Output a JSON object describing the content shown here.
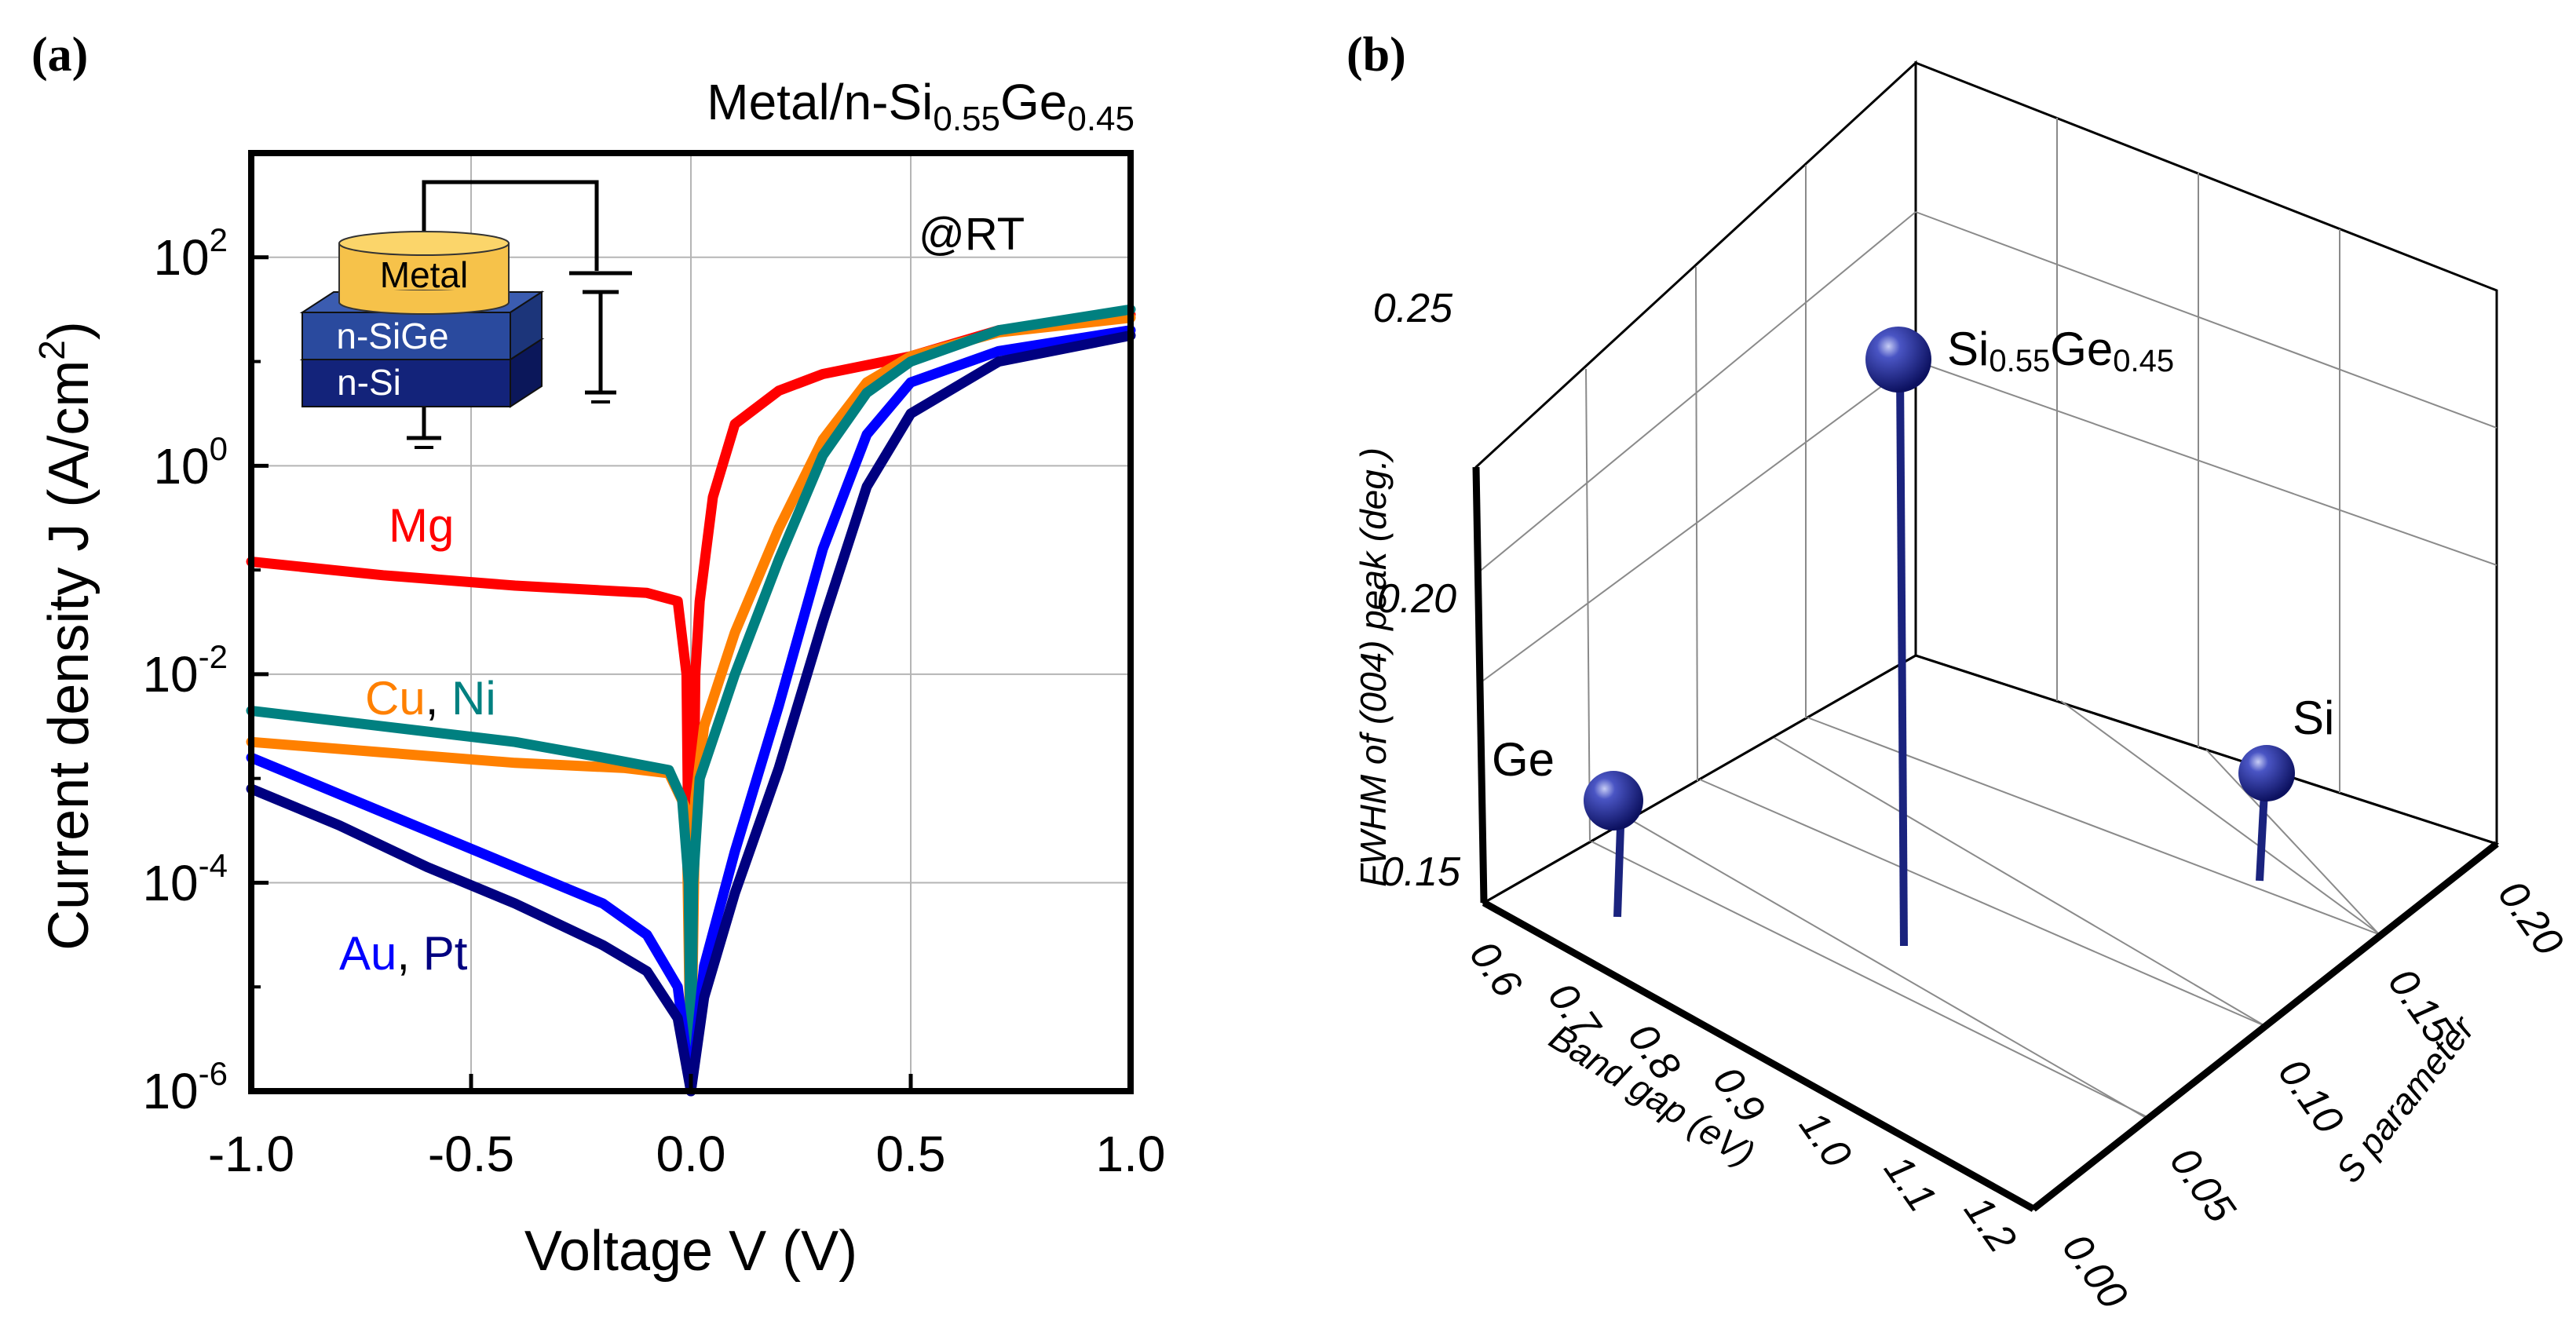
{
  "chart_data": [
    {
      "panel": "(a)",
      "type": "line",
      "title": "Metal/n-Si0.55Ge0.45",
      "title_parts": [
        "Metal/n-Si",
        "0.55",
        "Ge",
        "0.45"
      ],
      "annotation": "@RT",
      "xlabel": "Voltage V (V)",
      "ylabel": "Current density J (A/cm2)",
      "ylabel_parts": [
        "Current density J (A/cm",
        "2",
        ")"
      ],
      "xlim": [
        -1.0,
        1.0
      ],
      "ylim_log10": [
        -6,
        3
      ],
      "y_scale": "log",
      "xticks": [
        -1.0,
        -0.5,
        0.0,
        0.5,
        1.0
      ],
      "xtick_labels": [
        "-1.0",
        "-0.5",
        "0.0",
        "0.5",
        "1.0"
      ],
      "yticks_log10": [
        -6,
        -4,
        -2,
        0,
        2
      ],
      "ytick_bases": [
        "10",
        "10",
        "10",
        "10",
        "10"
      ],
      "ytick_exps": [
        "-6",
        "-4",
        "-2",
        "0",
        "2"
      ],
      "grid": true,
      "legend_labels": {
        "mg": "Mg",
        "cu": "Cu",
        "comma1": ", ",
        "ni": "Ni",
        "au": "Au",
        "comma2": ", ",
        "pt": "Pt"
      },
      "inset": {
        "metal": "Metal",
        "sige": "n-SiGe",
        "si": "n-Si"
      },
      "series": [
        {
          "name": "Mg",
          "color": "#ff0000",
          "points": [
            [
              -1.0,
              -0.92
            ],
            [
              -0.7,
              -1.05
            ],
            [
              -0.4,
              -1.15
            ],
            [
              -0.1,
              -1.22
            ],
            [
              -0.03,
              -1.3
            ],
            [
              -0.01,
              -2.0
            ],
            [
              0.0,
              -6.0
            ],
            [
              0.01,
              -2.0
            ],
            [
              0.02,
              -1.3
            ],
            [
              0.05,
              -0.3
            ],
            [
              0.1,
              0.4
            ],
            [
              0.2,
              0.72
            ],
            [
              0.3,
              0.88
            ],
            [
              0.5,
              1.05
            ],
            [
              0.7,
              1.3
            ],
            [
              1.0,
              1.45
            ]
          ]
        },
        {
          "name": "Cu",
          "color": "#ff8000",
          "points": [
            [
              -1.0,
              -2.65
            ],
            [
              -0.7,
              -2.75
            ],
            [
              -0.4,
              -2.85
            ],
            [
              -0.15,
              -2.9
            ],
            [
              -0.05,
              -2.95
            ],
            [
              -0.01,
              -3.3
            ],
            [
              0.0,
              -6.0
            ],
            [
              0.01,
              -3.2
            ],
            [
              0.03,
              -2.5
            ],
            [
              0.1,
              -1.6
            ],
            [
              0.2,
              -0.6
            ],
            [
              0.3,
              0.25
            ],
            [
              0.4,
              0.8
            ],
            [
              0.5,
              1.05
            ],
            [
              0.7,
              1.28
            ],
            [
              1.0,
              1.42
            ]
          ]
        },
        {
          "name": "Ni",
          "color": "#008080",
          "points": [
            [
              -1.0,
              -2.35
            ],
            [
              -0.7,
              -2.5
            ],
            [
              -0.4,
              -2.65
            ],
            [
              -0.2,
              -2.8
            ],
            [
              -0.05,
              -2.92
            ],
            [
              -0.02,
              -3.2
            ],
            [
              -0.005,
              -4.0
            ],
            [
              0.0,
              -6.0
            ],
            [
              0.005,
              -4.0
            ],
            [
              0.02,
              -3.0
            ],
            [
              0.1,
              -2.0
            ],
            [
              0.2,
              -0.9
            ],
            [
              0.3,
              0.1
            ],
            [
              0.4,
              0.7
            ],
            [
              0.5,
              1.0
            ],
            [
              0.7,
              1.3
            ],
            [
              1.0,
              1.5
            ]
          ]
        },
        {
          "name": "Au",
          "color": "#0000ff",
          "points": [
            [
              -1.0,
              -2.8
            ],
            [
              -0.8,
              -3.15
            ],
            [
              -0.6,
              -3.5
            ],
            [
              -0.4,
              -3.85
            ],
            [
              -0.2,
              -4.2
            ],
            [
              -0.1,
              -4.5
            ],
            [
              -0.03,
              -5.0
            ],
            [
              0.0,
              -6.0
            ],
            [
              0.03,
              -4.8
            ],
            [
              0.1,
              -3.7
            ],
            [
              0.2,
              -2.3
            ],
            [
              0.3,
              -0.8
            ],
            [
              0.4,
              0.3
            ],
            [
              0.5,
              0.8
            ],
            [
              0.7,
              1.1
            ],
            [
              1.0,
              1.3
            ]
          ]
        },
        {
          "name": "Pt",
          "color": "#000080",
          "points": [
            [
              -1.0,
              -3.1
            ],
            [
              -0.8,
              -3.45
            ],
            [
              -0.6,
              -3.85
            ],
            [
              -0.4,
              -4.2
            ],
            [
              -0.2,
              -4.6
            ],
            [
              -0.1,
              -4.85
            ],
            [
              -0.03,
              -5.3
            ],
            [
              0.0,
              -6.0
            ],
            [
              0.03,
              -5.1
            ],
            [
              0.1,
              -4.1
            ],
            [
              0.2,
              -2.9
            ],
            [
              0.3,
              -1.5
            ],
            [
              0.4,
              -0.2
            ],
            [
              0.5,
              0.5
            ],
            [
              0.7,
              1.0
            ],
            [
              1.0,
              1.25
            ]
          ]
        }
      ]
    },
    {
      "panel": "(b)",
      "type": "scatter",
      "projection": "3d-stem",
      "xlabel": "Band gap (eV)",
      "ylabel": "S parameter",
      "zlabel": "FWHM of (004) peak (deg.)",
      "xticks": [
        "0.6",
        "0.7",
        "0.8",
        "0.9",
        "1.0",
        "1.1",
        "1.2"
      ],
      "yticks": [
        "0.00",
        "0.05",
        "0.10",
        "0.15",
        "0.20"
      ],
      "zticks": [
        "0.15",
        "0.20",
        "0.25"
      ],
      "marker_color": "#1a237e",
      "points": [
        {
          "label": "Ge",
          "band_gap": 0.66,
          "s_parameter": 0.06,
          "fwhm": 0.16
        },
        {
          "label": "Si0.55Ge0.45",
          "label_parts": [
            "Si",
            "0.55",
            "Ge",
            "0.45"
          ],
          "band_gap": 0.93,
          "s_parameter": 0.1,
          "fwhm": 0.245
        },
        {
          "label": "Si",
          "band_gap": 1.12,
          "s_parameter": 0.2,
          "fwhm": 0.155
        }
      ]
    }
  ]
}
